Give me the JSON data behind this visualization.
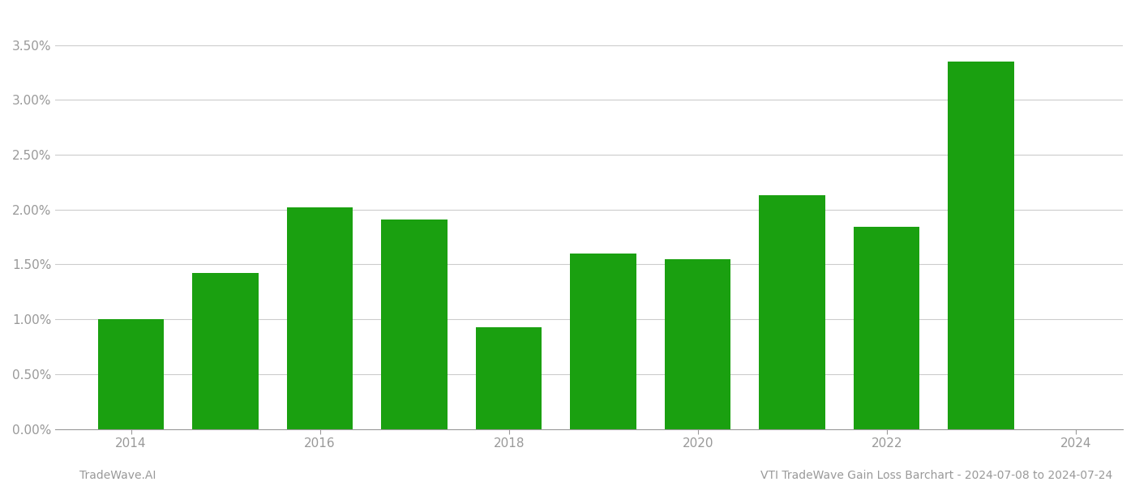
{
  "years": [
    2014,
    2015,
    2016,
    2017,
    2018,
    2019,
    2020,
    2021,
    2022,
    2023
  ],
  "values": [
    0.01,
    0.0142,
    0.0202,
    0.0191,
    0.0093,
    0.016,
    0.0155,
    0.0213,
    0.0184,
    0.0335
  ],
  "bar_color": "#1aA010",
  "background_color": "#ffffff",
  "grid_color": "#cccccc",
  "axis_color": "#999999",
  "tick_color": "#999999",
  "footer_left": "TradeWave.AI",
  "footer_right": "VTI TradeWave Gain Loss Barchart - 2024-07-08 to 2024-07-24",
  "ylim": [
    0.0,
    0.038
  ],
  "yticks": [
    0.0,
    0.005,
    0.01,
    0.015,
    0.02,
    0.025,
    0.03,
    0.035
  ],
  "ytick_labels": [
    "0.00%",
    "0.50%",
    "1.00%",
    "1.50%",
    "2.00%",
    "2.50%",
    "3.00%",
    "3.50%"
  ],
  "xtick_major": [
    2014,
    2016,
    2018,
    2020,
    2022,
    2024
  ],
  "bar_width": 0.7,
  "figsize": [
    14.0,
    6.0
  ],
  "dpi": 100,
  "xlim": [
    2013.2,
    2024.5
  ]
}
